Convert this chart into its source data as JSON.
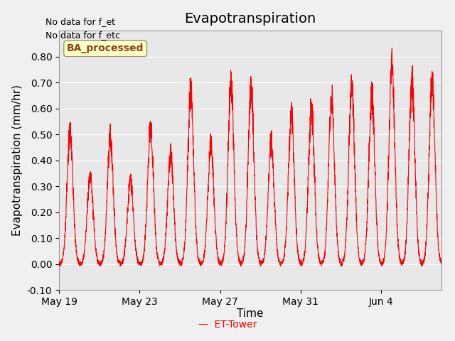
{
  "title": "Evapotranspiration",
  "ylabel": "Evapotranspiration (mm/hr)",
  "xlabel": "Time",
  "ylim": [
    -0.1,
    0.9
  ],
  "yticks": [
    -0.1,
    0.0,
    0.1,
    0.2,
    0.3,
    0.4,
    0.5,
    0.6,
    0.7,
    0.8
  ],
  "line_color": "red",
  "background_color": "#f0f0f0",
  "plot_bg_color": "#e8e8e8",
  "grid_color": "white",
  "annotation_text_line1": "No data for f_et",
  "annotation_text_line2": "No data for f_etc",
  "legend_label": "ET-Tower",
  "legend_box_label": "BA_processed",
  "legend_box_facecolor": "#ffffcc",
  "legend_box_edgecolor": "#999966",
  "xtick_labels": [
    "May 19",
    "May 23",
    "May 27",
    "May 31",
    "Jun 4"
  ],
  "title_fontsize": 14,
  "label_fontsize": 11,
  "tick_fontsize": 10
}
